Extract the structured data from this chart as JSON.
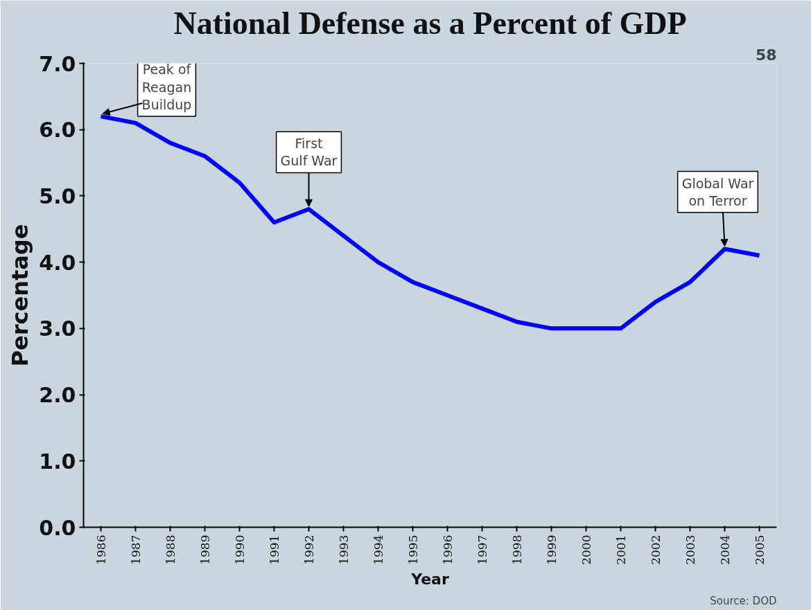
{
  "chart_data": {
    "type": "line",
    "title": "National Defense as a Percent of GDP",
    "xlabel": "Year",
    "ylabel": "Percentage",
    "categories": [
      "1986",
      "1987",
      "1988",
      "1989",
      "1990",
      "1991",
      "1992",
      "1993",
      "1994",
      "1995",
      "1996",
      "1997",
      "1998",
      "1999",
      "2000",
      "2001",
      "2002",
      "2003",
      "2004",
      "2005"
    ],
    "series": [
      {
        "color": "#0000ff",
        "values": [
          6.2,
          6.1,
          5.8,
          5.6,
          5.2,
          4.6,
          4.8,
          4.4,
          4.0,
          3.7,
          3.5,
          3.3,
          3.1,
          3.0,
          3.0,
          3.0,
          3.4,
          3.7,
          4.2,
          4.1
        ]
      }
    ],
    "ylim": [
      0,
      7
    ],
    "yticks": [
      {
        "value": 0,
        "label": "0.0"
      },
      {
        "value": 1,
        "label": "1.0"
      },
      {
        "value": 2,
        "label": "2.0"
      },
      {
        "value": 3,
        "label": "3.0"
      },
      {
        "value": 4,
        "label": "4.0"
      },
      {
        "value": 5,
        "label": "5.0"
      },
      {
        "value": 6,
        "label": "6.0"
      },
      {
        "value": 7,
        "label": "7.0"
      }
    ],
    "grid": false,
    "marker": "none",
    "line_style": "solid",
    "annotations": [
      {
        "text": "Peak of\nReagan\nBuildup",
        "x": "1986",
        "y": 6.2
      },
      {
        "text": "First\nGulf War",
        "x": "1992",
        "y": 4.8
      },
      {
        "text": "Global War\non Terror",
        "x": "2004",
        "y": 4.2
      },
      "58",
      "Source: DOD"
    ]
  }
}
